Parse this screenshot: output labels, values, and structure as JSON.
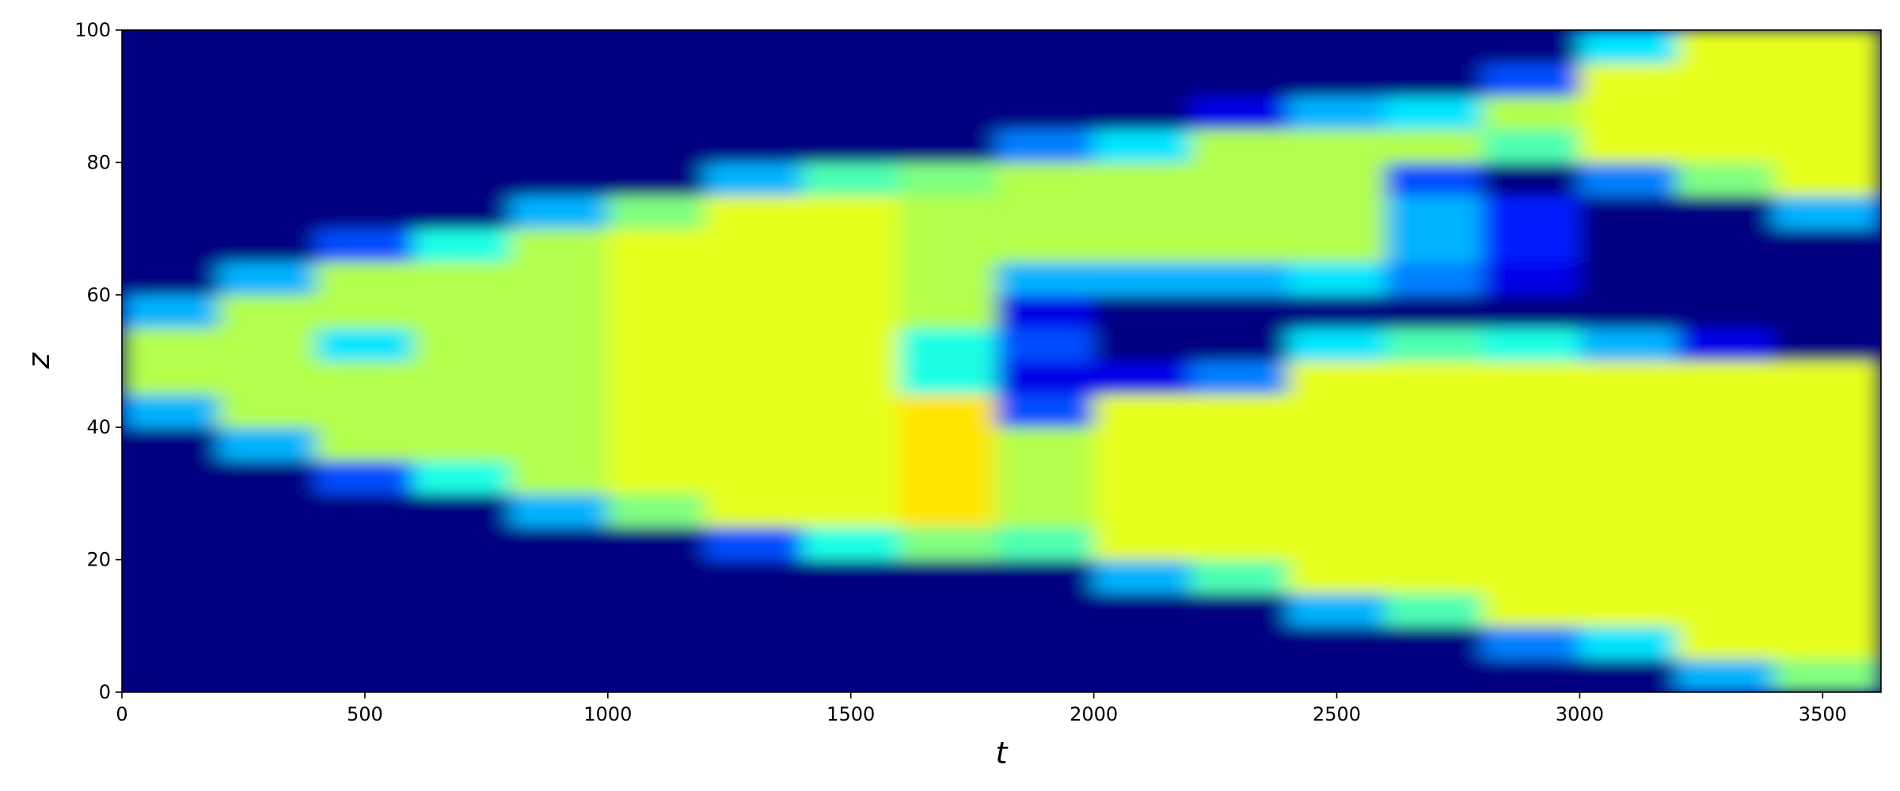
{
  "chart_data": {
    "type": "heatmap",
    "colormap": "jet",
    "xlabel": "t",
    "ylabel": "z",
    "xlim": [
      0,
      3620
    ],
    "ylim": [
      0,
      100
    ],
    "xticks": [
      0,
      500,
      1000,
      1500,
      2000,
      2500,
      3000,
      3500
    ],
    "yticks": [
      0,
      20,
      40,
      60,
      80,
      100
    ],
    "clim": [
      0,
      1
    ],
    "xbins": [
      0,
      200,
      400,
      600,
      800,
      1000,
      1200,
      1400,
      1600,
      1800,
      2000,
      2200,
      2400,
      2600,
      2800,
      3000,
      3200,
      3400,
      3620
    ],
    "ybins": [
      0,
      5,
      10,
      15,
      20,
      25,
      30,
      35,
      40,
      45,
      50,
      55,
      60,
      65,
      70,
      75,
      80,
      85,
      90,
      95,
      100
    ],
    "values": [
      [
        0,
        0,
        0,
        0,
        0,
        0,
        0,
        0,
        0,
        0,
        0,
        0,
        0,
        0,
        0,
        0,
        0.3,
        0.5
      ],
      [
        0,
        0,
        0,
        0,
        0,
        0,
        0,
        0,
        0,
        0,
        0,
        0,
        0,
        0,
        0.25,
        0.35,
        0.6,
        0.6
      ],
      [
        0,
        0,
        0,
        0,
        0,
        0,
        0,
        0,
        0,
        0,
        0,
        0,
        0.3,
        0.45,
        0.6,
        0.6,
        0.6,
        0.6
      ],
      [
        0,
        0,
        0,
        0,
        0,
        0,
        0,
        0,
        0,
        0,
        0.3,
        0.45,
        0.6,
        0.6,
        0.6,
        0.6,
        0.6,
        0.6
      ],
      [
        0,
        0,
        0,
        0,
        0,
        0,
        0.2,
        0.4,
        0.5,
        0.45,
        0.6,
        0.6,
        0.6,
        0.6,
        0.6,
        0.6,
        0.6,
        0.6
      ],
      [
        0,
        0,
        0,
        0,
        0.3,
        0.5,
        0.6,
        0.6,
        0.65,
        0.55,
        0.6,
        0.6,
        0.6,
        0.6,
        0.6,
        0.6,
        0.6,
        0.6
      ],
      [
        0,
        0,
        0.2,
        0.4,
        0.55,
        0.6,
        0.6,
        0.6,
        0.65,
        0.55,
        0.6,
        0.6,
        0.6,
        0.6,
        0.6,
        0.6,
        0.6,
        0.6
      ],
      [
        0,
        0.3,
        0.55,
        0.55,
        0.55,
        0.6,
        0.6,
        0.6,
        0.65,
        0.55,
        0.6,
        0.6,
        0.6,
        0.6,
        0.6,
        0.6,
        0.6,
        0.6
      ],
      [
        0.3,
        0.55,
        0.55,
        0.55,
        0.55,
        0.6,
        0.6,
        0.6,
        0.65,
        0.2,
        0.6,
        0.6,
        0.6,
        0.6,
        0.6,
        0.6,
        0.6,
        0.6
      ],
      [
        0.55,
        0.55,
        0.55,
        0.55,
        0.55,
        0.6,
        0.6,
        0.6,
        0.4,
        0.1,
        0.1,
        0.25,
        0.6,
        0.6,
        0.6,
        0.6,
        0.6,
        0.6
      ],
      [
        0.55,
        0.55,
        0.35,
        0.55,
        0.55,
        0.6,
        0.6,
        0.6,
        0.4,
        0.2,
        0,
        0,
        0.35,
        0.45,
        0.4,
        0.3,
        0.1,
        0
      ],
      [
        0.3,
        0.55,
        0.55,
        0.55,
        0.55,
        0.6,
        0.6,
        0.6,
        0.55,
        0.1,
        0,
        0,
        0,
        0,
        0,
        0,
        0,
        0
      ],
      [
        0,
        0.3,
        0.55,
        0.55,
        0.55,
        0.6,
        0.6,
        0.6,
        0.55,
        0.3,
        0.3,
        0.3,
        0.35,
        0.25,
        0.1,
        0,
        0,
        0
      ],
      [
        0,
        0,
        0.2,
        0.4,
        0.55,
        0.6,
        0.6,
        0.6,
        0.55,
        0.55,
        0.55,
        0.55,
        0.55,
        0.3,
        0.15,
        0,
        0,
        0
      ],
      [
        0,
        0,
        0,
        0,
        0.3,
        0.5,
        0.6,
        0.6,
        0.55,
        0.55,
        0.55,
        0.55,
        0.55,
        0.3,
        0.15,
        0,
        0,
        0.3
      ],
      [
        0,
        0,
        0,
        0,
        0,
        0,
        0.3,
        0.45,
        0.5,
        0.55,
        0.55,
        0.55,
        0.55,
        0.2,
        0,
        0.25,
        0.5,
        0.6
      ],
      [
        0,
        0,
        0,
        0,
        0,
        0,
        0,
        0,
        0,
        0.25,
        0.35,
        0.55,
        0.55,
        0.55,
        0.45,
        0.6,
        0.6,
        0.6
      ],
      [
        0,
        0,
        0,
        0,
        0,
        0,
        0,
        0,
        0,
        0,
        0,
        0.1,
        0.3,
        0.35,
        0.55,
        0.6,
        0.6,
        0.6
      ],
      [
        0,
        0,
        0,
        0,
        0,
        0,
        0,
        0,
        0,
        0,
        0,
        0,
        0,
        0,
        0.2,
        0.6,
        0.6,
        0.6
      ],
      [
        0,
        0,
        0,
        0,
        0,
        0,
        0,
        0,
        0,
        0,
        0,
        0,
        0,
        0,
        0,
        0.35,
        0.6,
        0.6
      ]
    ]
  }
}
